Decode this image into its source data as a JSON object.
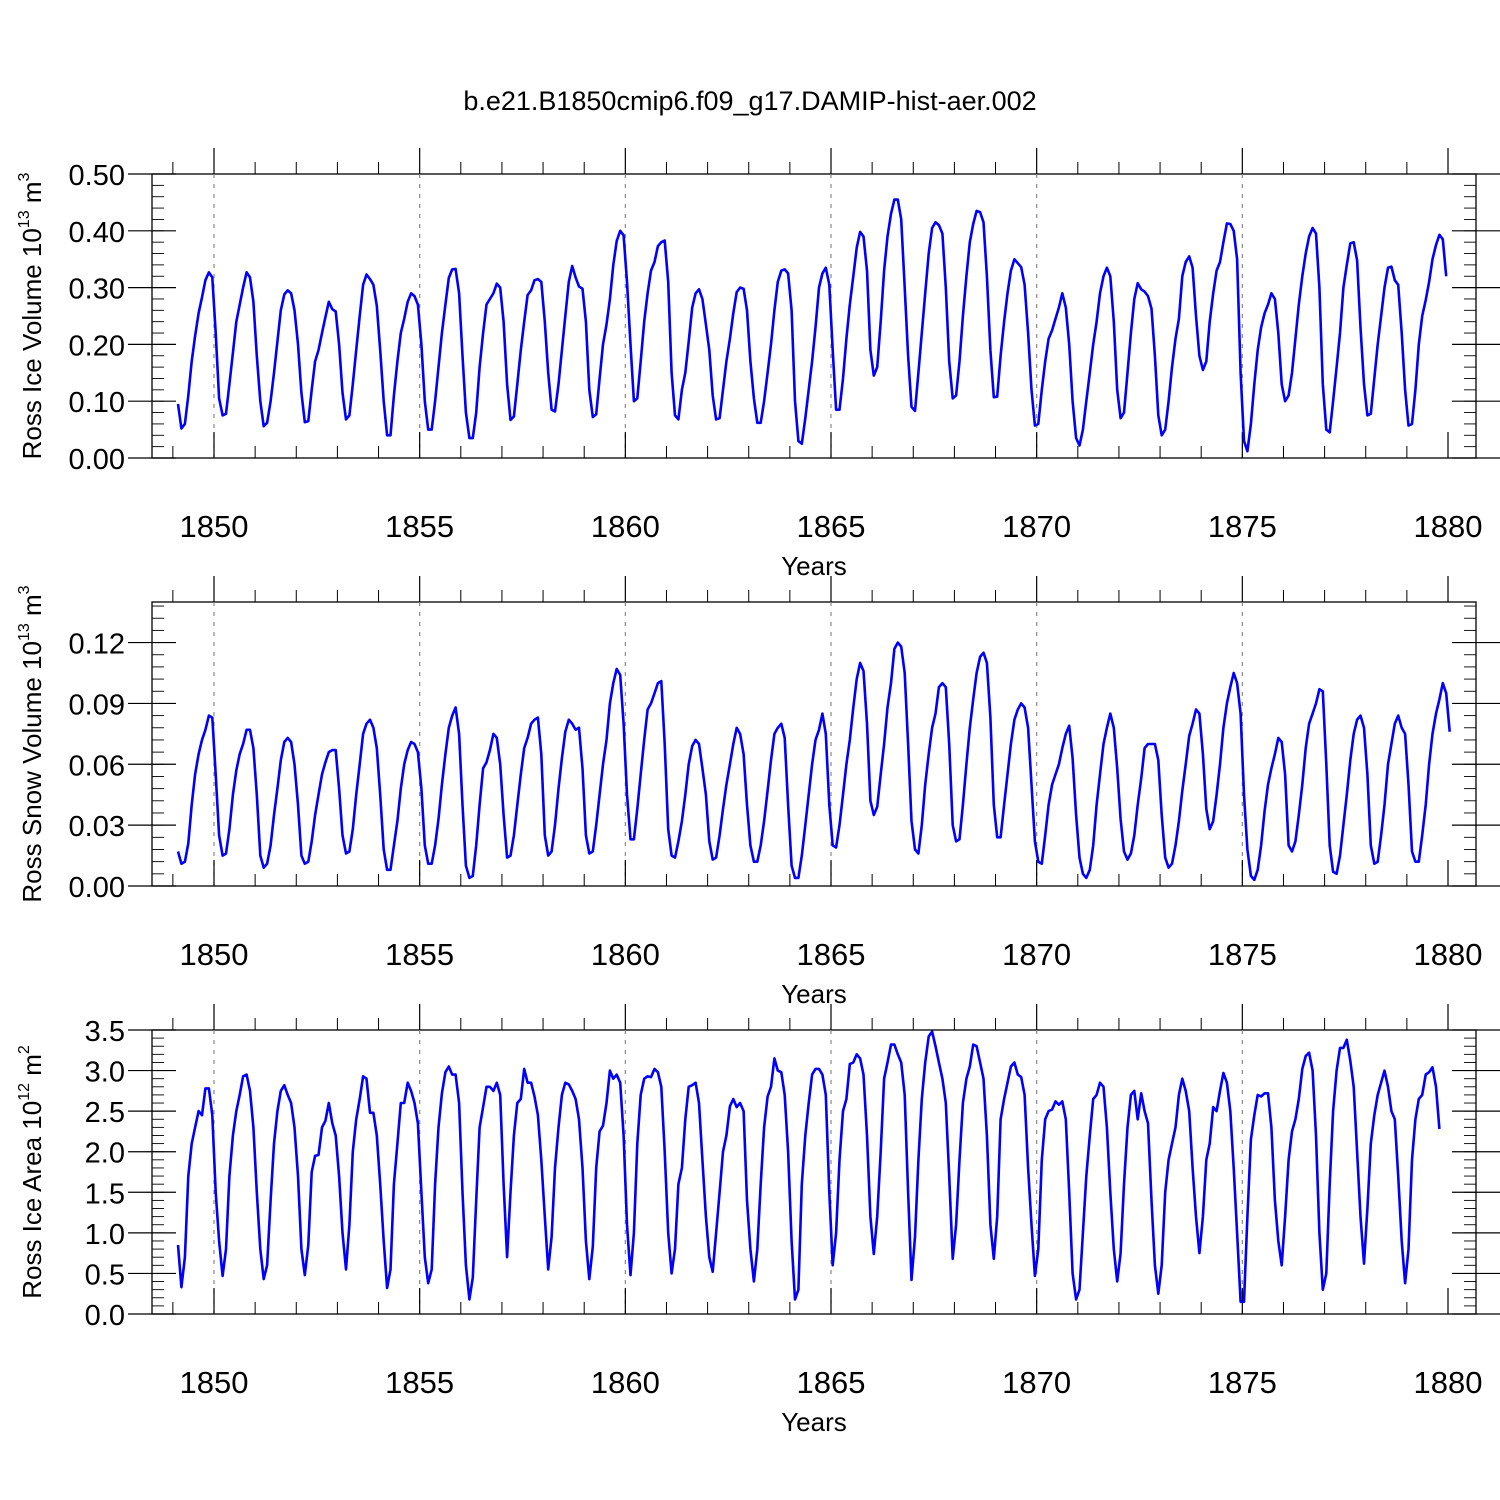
{
  "figure": {
    "title": "b.e21.B1850cmip6.f09_g17.DAMIP-hist-aer.002"
  },
  "chart_data": [
    {
      "type": "line",
      "title": "",
      "xlabel": "Years",
      "ylabel_base": "Ross Ice Volume 10",
      "ylabel_exp": "13",
      "ylabel_unit": " m",
      "ylabel_unit_exp": "3",
      "xlim": [
        1849.1,
        1880.0
      ],
      "ylim": [
        0.0,
        0.5
      ],
      "xticks": [
        "1850",
        "1855",
        "1860",
        "1865",
        "1870",
        "1875",
        "1880"
      ],
      "xtick_values": [
        1850,
        1855,
        1860,
        1865,
        1870,
        1875,
        1880
      ],
      "yticks": [
        "0.00",
        "0.10",
        "0.20",
        "0.30",
        "0.40",
        "0.50"
      ],
      "ytick_values": [
        0.0,
        0.1,
        0.2,
        0.3,
        0.4,
        0.5
      ],
      "grid": "dashed vertical lines at major x ticks",
      "color": "#0000ff",
      "x_start": 1849.125,
      "x_step": 0.08333,
      "values": [
        0.095,
        0.052,
        0.06,
        0.11,
        0.17,
        0.215,
        0.255,
        0.283,
        0.313,
        0.327,
        0.318,
        0.22,
        0.105,
        0.075,
        0.078,
        0.13,
        0.185,
        0.24,
        0.27,
        0.3,
        0.327,
        0.318,
        0.275,
        0.18,
        0.1,
        0.056,
        0.062,
        0.1,
        0.15,
        0.205,
        0.26,
        0.288,
        0.295,
        0.29,
        0.26,
        0.2,
        0.115,
        0.063,
        0.065,
        0.12,
        0.17,
        0.19,
        0.22,
        0.248,
        0.275,
        0.262,
        0.258,
        0.2,
        0.115,
        0.068,
        0.075,
        0.13,
        0.19,
        0.25,
        0.305,
        0.323,
        0.315,
        0.305,
        0.268,
        0.19,
        0.1,
        0.04,
        0.04,
        0.11,
        0.17,
        0.22,
        0.245,
        0.275,
        0.29,
        0.285,
        0.27,
        0.2,
        0.1,
        0.05,
        0.05,
        0.1,
        0.16,
        0.22,
        0.27,
        0.317,
        0.332,
        0.333,
        0.29,
        0.18,
        0.08,
        0.035,
        0.035,
        0.08,
        0.16,
        0.22,
        0.27,
        0.28,
        0.29,
        0.307,
        0.3,
        0.24,
        0.13,
        0.067,
        0.073,
        0.13,
        0.19,
        0.24,
        0.287,
        0.295,
        0.313,
        0.315,
        0.31,
        0.24,
        0.15,
        0.085,
        0.082,
        0.13,
        0.19,
        0.25,
        0.31,
        0.338,
        0.318,
        0.302,
        0.298,
        0.24,
        0.12,
        0.072,
        0.077,
        0.14,
        0.2,
        0.235,
        0.28,
        0.34,
        0.382,
        0.4,
        0.392,
        0.31,
        0.2,
        0.1,
        0.105,
        0.17,
        0.24,
        0.29,
        0.33,
        0.345,
        0.373,
        0.38,
        0.383,
        0.31,
        0.15,
        0.075,
        0.068,
        0.12,
        0.15,
        0.205,
        0.265,
        0.29,
        0.297,
        0.28,
        0.235,
        0.19,
        0.11,
        0.068,
        0.07,
        0.12,
        0.17,
        0.21,
        0.255,
        0.292,
        0.3,
        0.298,
        0.26,
        0.17,
        0.105,
        0.062,
        0.062,
        0.1,
        0.15,
        0.2,
        0.26,
        0.31,
        0.33,
        0.332,
        0.325,
        0.26,
        0.1,
        0.03,
        0.025,
        0.07,
        0.12,
        0.17,
        0.23,
        0.3,
        0.325,
        0.335,
        0.305,
        0.19,
        0.085,
        0.085,
        0.14,
        0.21,
        0.27,
        0.32,
        0.37,
        0.398,
        0.39,
        0.33,
        0.19,
        0.145,
        0.16,
        0.24,
        0.33,
        0.39,
        0.43,
        0.455,
        0.455,
        0.42,
        0.3,
        0.18,
        0.09,
        0.083,
        0.15,
        0.22,
        0.29,
        0.36,
        0.405,
        0.415,
        0.41,
        0.395,
        0.3,
        0.17,
        0.105,
        0.11,
        0.17,
        0.25,
        0.32,
        0.38,
        0.412,
        0.435,
        0.433,
        0.415,
        0.32,
        0.19,
        0.107,
        0.108,
        0.18,
        0.24,
        0.29,
        0.33,
        0.35,
        0.343,
        0.336,
        0.305,
        0.22,
        0.12,
        0.057,
        0.06,
        0.12,
        0.17,
        0.21,
        0.225,
        0.245,
        0.265,
        0.29,
        0.265,
        0.2,
        0.1,
        0.035,
        0.022,
        0.05,
        0.1,
        0.15,
        0.2,
        0.24,
        0.29,
        0.32,
        0.335,
        0.32,
        0.24,
        0.12,
        0.07,
        0.08,
        0.15,
        0.22,
        0.28,
        0.308,
        0.297,
        0.293,
        0.285,
        0.263,
        0.18,
        0.075,
        0.04,
        0.05,
        0.1,
        0.16,
        0.21,
        0.245,
        0.32,
        0.345,
        0.355,
        0.335,
        0.25,
        0.18,
        0.155,
        0.17,
        0.24,
        0.29,
        0.33,
        0.345,
        0.38,
        0.413,
        0.412,
        0.4,
        0.35,
        0.15,
        0.03,
        0.012,
        0.06,
        0.13,
        0.19,
        0.23,
        0.255,
        0.27,
        0.29,
        0.28,
        0.22,
        0.13,
        0.1,
        0.11,
        0.15,
        0.21,
        0.27,
        0.32,
        0.36,
        0.39,
        0.405,
        0.395,
        0.3,
        0.13,
        0.05,
        0.045,
        0.1,
        0.16,
        0.22,
        0.3,
        0.34,
        0.378,
        0.38,
        0.348,
        0.23,
        0.13,
        0.075,
        0.078,
        0.14,
        0.2,
        0.25,
        0.3,
        0.335,
        0.337,
        0.313,
        0.305,
        0.22,
        0.12,
        0.057,
        0.06,
        0.12,
        0.2,
        0.25,
        0.278,
        0.31,
        0.35,
        0.375,
        0.393,
        0.385,
        0.32
      ]
    },
    {
      "type": "line",
      "title": "",
      "xlabel": "Years",
      "ylabel_base": "Ross Snow Volume 10",
      "ylabel_exp": "13",
      "ylabel_unit": " m",
      "ylabel_unit_exp": "3",
      "xlim": [
        1849.1,
        1880.0
      ],
      "ylim": [
        0.0,
        0.14
      ],
      "xticks": [
        "1850",
        "1855",
        "1860",
        "1865",
        "1870",
        "1875",
        "1880"
      ],
      "xtick_values": [
        1850,
        1855,
        1860,
        1865,
        1870,
        1875,
        1880
      ],
      "yticks": [
        "0.00",
        "0.03",
        "0.06",
        "0.09",
        "0.12"
      ],
      "ytick_values": [
        0.0,
        0.03,
        0.06,
        0.09,
        0.12
      ],
      "grid": "dashed vertical lines at major x ticks",
      "color": "#0000ff",
      "x_start": 1849.125,
      "x_step": 0.08333,
      "values": [
        0.017,
        0.011,
        0.012,
        0.021,
        0.04,
        0.055,
        0.065,
        0.072,
        0.077,
        0.084,
        0.083,
        0.055,
        0.025,
        0.015,
        0.016,
        0.028,
        0.045,
        0.057,
        0.065,
        0.07,
        0.077,
        0.077,
        0.068,
        0.045,
        0.015,
        0.009,
        0.011,
        0.02,
        0.035,
        0.048,
        0.062,
        0.071,
        0.073,
        0.071,
        0.06,
        0.04,
        0.015,
        0.011,
        0.012,
        0.022,
        0.035,
        0.045,
        0.055,
        0.061,
        0.066,
        0.067,
        0.067,
        0.048,
        0.025,
        0.016,
        0.017,
        0.028,
        0.045,
        0.06,
        0.075,
        0.08,
        0.082,
        0.078,
        0.068,
        0.045,
        0.018,
        0.008,
        0.008,
        0.02,
        0.032,
        0.048,
        0.06,
        0.067,
        0.071,
        0.07,
        0.066,
        0.048,
        0.02,
        0.011,
        0.011,
        0.02,
        0.033,
        0.05,
        0.065,
        0.078,
        0.084,
        0.088,
        0.075,
        0.04,
        0.01,
        0.004,
        0.005,
        0.02,
        0.04,
        0.058,
        0.061,
        0.067,
        0.075,
        0.073,
        0.06,
        0.035,
        0.014,
        0.015,
        0.025,
        0.04,
        0.055,
        0.068,
        0.073,
        0.08,
        0.082,
        0.083,
        0.065,
        0.025,
        0.015,
        0.017,
        0.03,
        0.048,
        0.063,
        0.076,
        0.082,
        0.08,
        0.077,
        0.078,
        0.058,
        0.025,
        0.016,
        0.017,
        0.03,
        0.045,
        0.06,
        0.072,
        0.09,
        0.1,
        0.107,
        0.104,
        0.08,
        0.045,
        0.023,
        0.023,
        0.038,
        0.055,
        0.072,
        0.087,
        0.09,
        0.095,
        0.1,
        0.101,
        0.07,
        0.028,
        0.015,
        0.014,
        0.022,
        0.032,
        0.045,
        0.06,
        0.069,
        0.072,
        0.07,
        0.058,
        0.045,
        0.022,
        0.013,
        0.014,
        0.025,
        0.038,
        0.05,
        0.06,
        0.07,
        0.078,
        0.075,
        0.065,
        0.04,
        0.02,
        0.012,
        0.012,
        0.02,
        0.032,
        0.047,
        0.062,
        0.075,
        0.078,
        0.08,
        0.073,
        0.04,
        0.01,
        0.004,
        0.004,
        0.015,
        0.03,
        0.045,
        0.06,
        0.072,
        0.077,
        0.085,
        0.075,
        0.04,
        0.02,
        0.019,
        0.03,
        0.045,
        0.06,
        0.072,
        0.088,
        0.102,
        0.11,
        0.106,
        0.08,
        0.042,
        0.035,
        0.039,
        0.055,
        0.07,
        0.088,
        0.1,
        0.117,
        0.12,
        0.118,
        0.105,
        0.07,
        0.032,
        0.018,
        0.016,
        0.03,
        0.05,
        0.065,
        0.078,
        0.085,
        0.098,
        0.1,
        0.098,
        0.07,
        0.03,
        0.022,
        0.023,
        0.04,
        0.06,
        0.078,
        0.092,
        0.105,
        0.113,
        0.115,
        0.11,
        0.083,
        0.04,
        0.024,
        0.024,
        0.04,
        0.055,
        0.07,
        0.082,
        0.087,
        0.09,
        0.088,
        0.078,
        0.05,
        0.022,
        0.012,
        0.011,
        0.025,
        0.04,
        0.05,
        0.055,
        0.06,
        0.068,
        0.075,
        0.079,
        0.063,
        0.035,
        0.014,
        0.006,
        0.004,
        0.008,
        0.02,
        0.04,
        0.055,
        0.07,
        0.078,
        0.085,
        0.078,
        0.058,
        0.033,
        0.017,
        0.013,
        0.016,
        0.025,
        0.04,
        0.053,
        0.068,
        0.07,
        0.07,
        0.07,
        0.062,
        0.035,
        0.014,
        0.009,
        0.011,
        0.02,
        0.032,
        0.047,
        0.06,
        0.074,
        0.08,
        0.087,
        0.085,
        0.065,
        0.038,
        0.028,
        0.032,
        0.045,
        0.06,
        0.078,
        0.09,
        0.098,
        0.105,
        0.1,
        0.085,
        0.045,
        0.018,
        0.005,
        0.003,
        0.008,
        0.02,
        0.037,
        0.05,
        0.058,
        0.065,
        0.073,
        0.071,
        0.055,
        0.02,
        0.017,
        0.022,
        0.035,
        0.05,
        0.068,
        0.08,
        0.085,
        0.09,
        0.097,
        0.096,
        0.06,
        0.02,
        0.007,
        0.006,
        0.015,
        0.03,
        0.045,
        0.062,
        0.075,
        0.082,
        0.084,
        0.078,
        0.055,
        0.02,
        0.011,
        0.012,
        0.025,
        0.04,
        0.06,
        0.07,
        0.08,
        0.084,
        0.078,
        0.075,
        0.05,
        0.017,
        0.012,
        0.012,
        0.025,
        0.04,
        0.06,
        0.075,
        0.085,
        0.092,
        0.1,
        0.095,
        0.076
      ]
    },
    {
      "type": "line",
      "title": "",
      "xlabel": "Years",
      "ylabel_base": "Ross Ice Area 10",
      "ylabel_exp": "12",
      "ylabel_unit": " m",
      "ylabel_unit_exp": "2",
      "xlim": [
        1849.1,
        1880.0
      ],
      "ylim": [
        0.0,
        3.5
      ],
      "xticks": [
        "1850",
        "1855",
        "1860",
        "1865",
        "1870",
        "1875",
        "1880"
      ],
      "xtick_values": [
        1850,
        1855,
        1860,
        1865,
        1870,
        1875,
        1880
      ],
      "yticks": [
        "0.0",
        "0.5",
        "1.0",
        "1.5",
        "2.0",
        "2.5",
        "3.0",
        "3.5"
      ],
      "ytick_values": [
        0.0,
        0.5,
        1.0,
        1.5,
        2.0,
        2.5,
        3.0,
        3.5
      ],
      "grid": "dashed vertical lines at major x ticks",
      "color": "#0000ff",
      "x_start": 1849.125,
      "x_step": 0.08333,
      "values": [
        0.85,
        0.33,
        0.7,
        1.7,
        2.1,
        2.3,
        2.5,
        2.45,
        2.78,
        2.78,
        2.45,
        1.5,
        0.9,
        0.47,
        0.8,
        1.7,
        2.2,
        2.5,
        2.7,
        2.93,
        2.95,
        2.75,
        2.3,
        1.5,
        0.8,
        0.43,
        0.6,
        1.4,
        2.1,
        2.5,
        2.75,
        2.82,
        2.7,
        2.6,
        2.3,
        1.7,
        0.8,
        0.48,
        0.85,
        1.75,
        1.95,
        1.96,
        2.3,
        2.38,
        2.6,
        2.35,
        2.2,
        1.7,
        1.0,
        0.55,
        1.1,
        2.0,
        2.4,
        2.65,
        2.93,
        2.9,
        2.48,
        2.48,
        2.2,
        1.6,
        0.9,
        0.32,
        0.55,
        1.6,
        2.1,
        2.6,
        2.6,
        2.85,
        2.75,
        2.6,
        2.35,
        1.5,
        0.7,
        0.38,
        0.55,
        1.6,
        2.3,
        2.72,
        2.98,
        3.05,
        2.95,
        2.95,
        2.6,
        1.5,
        0.6,
        0.18,
        0.45,
        1.4,
        2.3,
        2.55,
        2.8,
        2.8,
        2.75,
        2.85,
        2.7,
        1.6,
        0.7,
        1.5,
        2.2,
        2.6,
        2.65,
        3.02,
        2.85,
        2.85,
        2.68,
        2.45,
        1.9,
        1.2,
        0.55,
        0.95,
        1.8,
        2.3,
        2.7,
        2.85,
        2.83,
        2.75,
        2.65,
        2.4,
        1.8,
        0.9,
        0.43,
        0.83,
        1.8,
        2.25,
        2.32,
        2.6,
        3.0,
        2.9,
        2.95,
        2.85,
        2.2,
        1.1,
        0.48,
        1.0,
        2.1,
        2.7,
        2.9,
        2.93,
        2.92,
        3.02,
        2.98,
        2.8,
        2.0,
        1.0,
        0.5,
        0.8,
        1.6,
        1.8,
        2.4,
        2.8,
        2.82,
        2.85,
        2.6,
        1.9,
        1.2,
        0.7,
        0.52,
        1.0,
        1.5,
        2.0,
        2.2,
        2.56,
        2.65,
        2.55,
        2.6,
        2.5,
        1.4,
        0.8,
        0.4,
        0.8,
        1.6,
        2.3,
        2.68,
        2.8,
        3.15,
        3.0,
        2.98,
        2.7,
        2.0,
        0.9,
        0.18,
        0.3,
        1.6,
        2.2,
        2.6,
        2.95,
        3.02,
        3.02,
        2.95,
        2.7,
        1.5,
        0.6,
        1.0,
        1.9,
        2.5,
        2.65,
        3.08,
        3.1,
        3.2,
        3.15,
        2.95,
        2.2,
        1.2,
        0.74,
        1.2,
        2.0,
        2.9,
        3.1,
        3.32,
        3.32,
        3.2,
        3.1,
        2.7,
        1.5,
        0.42,
        0.95,
        1.9,
        2.65,
        3.1,
        3.42,
        3.48,
        3.3,
        3.1,
        2.9,
        2.6,
        1.7,
        0.68,
        1.1,
        1.9,
        2.6,
        2.9,
        3.05,
        3.32,
        3.3,
        3.1,
        2.9,
        2.2,
        1.1,
        0.68,
        1.2,
        2.4,
        2.65,
        2.85,
        3.05,
        3.1,
        2.95,
        2.92,
        2.7,
        1.8,
        1.1,
        0.47,
        0.8,
        1.9,
        2.4,
        2.5,
        2.52,
        2.62,
        2.58,
        2.62,
        2.4,
        1.5,
        0.5,
        0.18,
        0.3,
        1.0,
        1.7,
        2.2,
        2.65,
        2.7,
        2.85,
        2.8,
        2.3,
        1.5,
        0.8,
        0.4,
        0.75,
        1.6,
        2.3,
        2.7,
        2.75,
        2.4,
        2.72,
        2.5,
        2.35,
        1.4,
        0.6,
        0.25,
        0.6,
        1.5,
        1.9,
        2.1,
        2.3,
        2.7,
        2.9,
        2.75,
        2.5,
        1.8,
        1.2,
        0.75,
        1.2,
        1.9,
        2.1,
        2.55,
        2.5,
        2.75,
        2.97,
        2.85,
        2.5,
        1.8,
        1.0,
        0.15,
        0.15,
        1.2,
        2.15,
        2.45,
        2.7,
        2.68,
        2.72,
        2.72,
        2.3,
        1.4,
        0.9,
        0.6,
        1.2,
        1.9,
        2.25,
        2.4,
        2.65,
        3.02,
        3.18,
        3.22,
        3.0,
        2.2,
        1.0,
        0.3,
        0.5,
        1.6,
        2.5,
        3.0,
        3.28,
        3.28,
        3.38,
        3.12,
        2.8,
        2.0,
        1.2,
        0.62,
        1.3,
        2.1,
        2.45,
        2.7,
        2.85,
        3.0,
        2.8,
        2.5,
        2.4,
        1.7,
        0.9,
        0.38,
        0.8,
        1.9,
        2.4,
        2.65,
        2.7,
        2.95,
        2.98,
        3.04,
        2.8,
        2.28
      ]
    }
  ]
}
